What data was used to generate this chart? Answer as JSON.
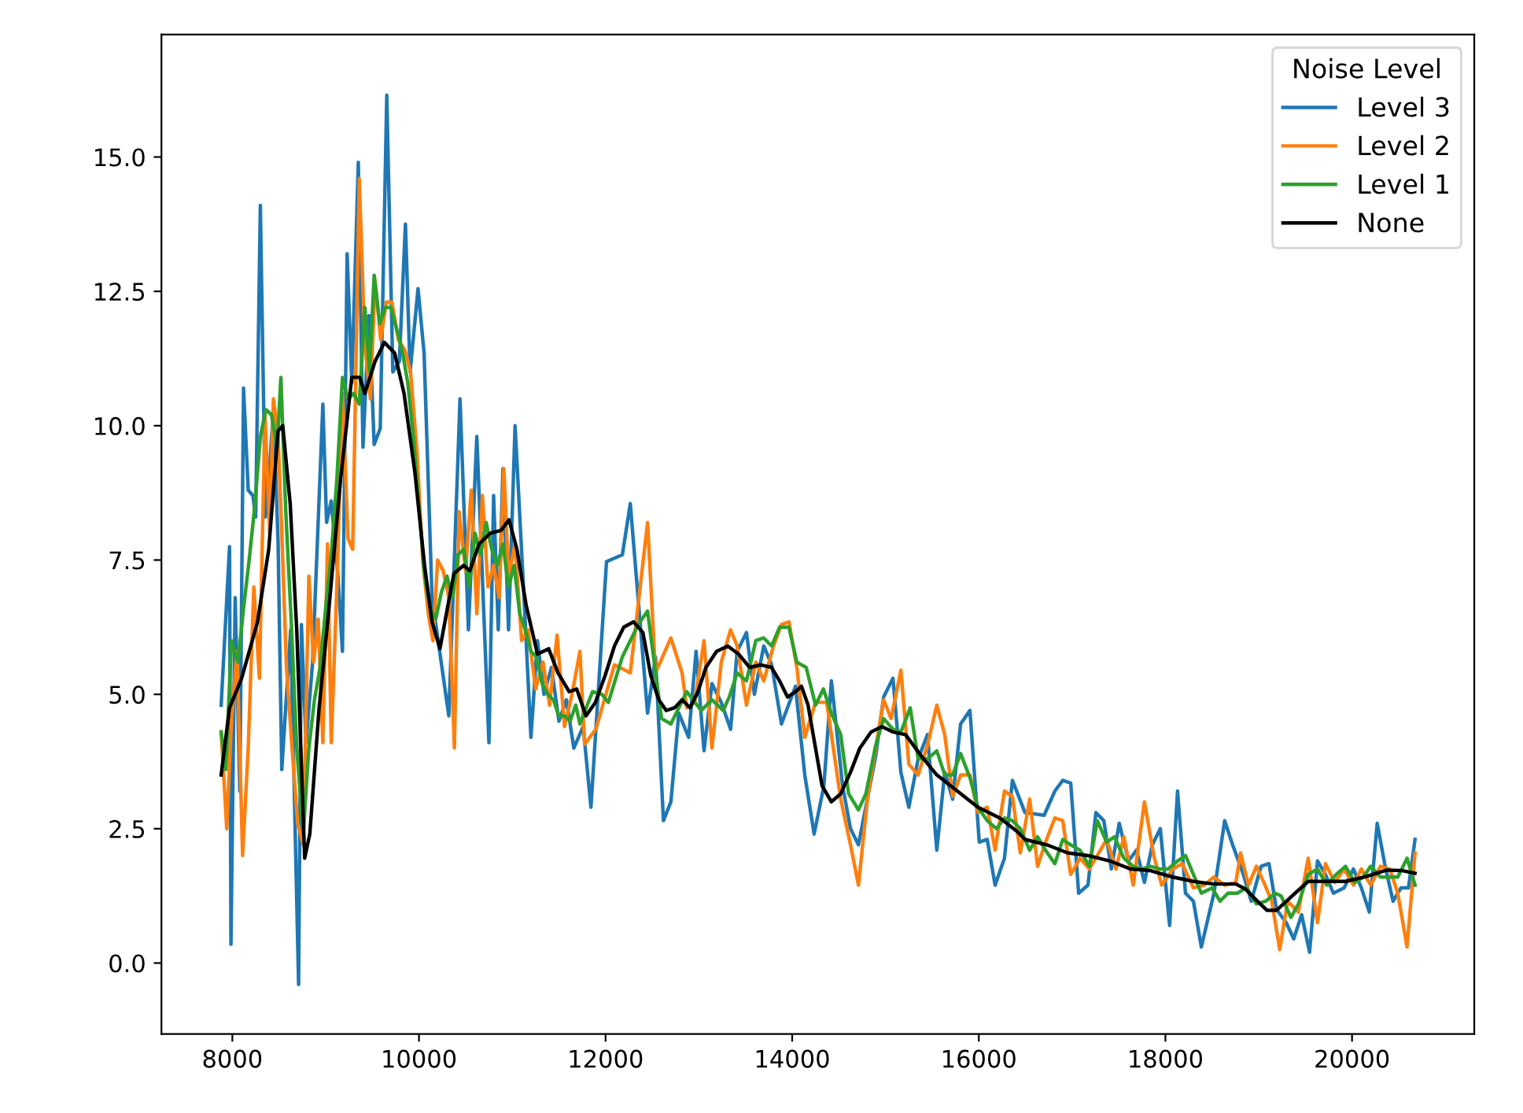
{
  "chart_data": {
    "type": "line",
    "legend_title": "Noise Level",
    "legend": "top right",
    "grid": false,
    "marker": "none",
    "line_style": "solid",
    "xlim": [
      7240,
      21310
    ],
    "ylim": [
      -1.32,
      17.28
    ],
    "xticks": [
      8000,
      10000,
      12000,
      14000,
      16000,
      18000,
      20000
    ],
    "yticks": [
      {
        "value": 0,
        "label": "0.0"
      },
      {
        "value": 2.5,
        "label": "2.5"
      },
      {
        "value": 5,
        "label": "5.0"
      },
      {
        "value": 7.5,
        "label": "7.5"
      },
      {
        "value": 10,
        "label": "10.0"
      },
      {
        "value": 12.5,
        "label": "12.5"
      },
      {
        "value": 15,
        "label": "15.0"
      }
    ],
    "series": [
      {
        "name": "Level 3",
        "color": "#1f77b4",
        "x": [
          7880,
          7970,
          7985,
          8030,
          8080,
          8120,
          8170,
          8220,
          8250,
          8300,
          8355,
          8400,
          8440,
          8490,
          8530,
          8625,
          8710,
          8740,
          8790,
          8860,
          8970,
          9010,
          9060,
          9130,
          9180,
          9230,
          9280,
          9350,
          9400,
          9465,
          9520,
          9585,
          9655,
          9720,
          9790,
          9855,
          9905,
          9990,
          10055,
          10140,
          10320,
          10440,
          10530,
          10620,
          10750,
          10800,
          10850,
          10900,
          10960,
          11030,
          11120,
          11200,
          11270,
          11340,
          11420,
          11500,
          11580,
          11660,
          11760,
          11843,
          12010,
          12180,
          12265,
          12450,
          12535,
          12620,
          12700,
          12785,
          12890,
          12970,
          13055,
          13140,
          13240,
          13340,
          13410,
          13510,
          13595,
          13695,
          13780,
          13885,
          14035,
          14135,
          14235,
          14340,
          14420,
          14540,
          14625,
          14710,
          14895,
          14980,
          15080,
          15165,
          15250,
          15350,
          15450,
          15550,
          15635,
          15720,
          15805,
          15905,
          16005,
          16090,
          16175,
          16275,
          16360,
          16495,
          16700,
          16815,
          16900,
          16985,
          17070,
          17170,
          17255,
          17340,
          17420,
          17505,
          17605,
          17690,
          17775,
          17860,
          17945,
          18045,
          18130,
          18215,
          18300,
          18385,
          18520,
          18635,
          18720,
          18835,
          18920,
          19025,
          19110,
          19190,
          19295,
          19375,
          19460,
          19545,
          19630,
          19715,
          19800,
          19915,
          20015,
          20100,
          20185,
          20270,
          20355,
          20440,
          20525,
          20605,
          20675
        ],
        "values": [
          4.8,
          7.75,
          0.35,
          6.8,
          3.2,
          10.7,
          8.8,
          8.7,
          8.3,
          14.1,
          8.3,
          9.25,
          10.3,
          7.85,
          3.6,
          6.2,
          -0.4,
          6.3,
          4.1,
          5.6,
          10.4,
          8.2,
          8.6,
          7.25,
          5.8,
          13.2,
          10.8,
          14.9,
          9.6,
          12.05,
          9.65,
          9.95,
          16.15,
          11.0,
          11.2,
          13.75,
          11.0,
          12.55,
          11.35,
          6.8,
          4.6,
          10.5,
          6.2,
          9.8,
          4.1,
          8.7,
          6.2,
          9.2,
          6.2,
          10.0,
          7.0,
          4.2,
          6.0,
          5.0,
          5.5,
          4.5,
          4.9,
          4.0,
          4.4,
          2.9,
          7.47,
          7.6,
          8.55,
          4.65,
          5.7,
          2.65,
          3.0,
          4.65,
          4.2,
          5.8,
          3.95,
          5.2,
          4.85,
          4.35,
          5.8,
          6.15,
          5.0,
          5.9,
          5.55,
          4.45,
          5.15,
          3.5,
          2.4,
          3.3,
          5.25,
          3.3,
          2.5,
          2.2,
          3.85,
          4.95,
          5.3,
          3.55,
          2.9,
          3.8,
          4.25,
          2.1,
          3.55,
          3.05,
          4.45,
          4.7,
          2.25,
          2.3,
          1.45,
          1.95,
          3.4,
          2.8,
          2.75,
          3.2,
          3.4,
          3.35,
          1.3,
          1.45,
          2.8,
          2.65,
          1.75,
          2.6,
          1.9,
          2.1,
          1.5,
          2.2,
          2.5,
          0.7,
          3.2,
          1.3,
          1.15,
          0.3,
          1.3,
          2.65,
          2.2,
          1.65,
          1.15,
          1.8,
          1.85,
          1.0,
          0.75,
          0.45,
          0.9,
          0.2,
          1.9,
          1.65,
          1.3,
          1.4,
          1.75,
          1.4,
          0.95,
          2.6,
          1.8,
          1.15,
          1.4,
          1.4,
          2.3
        ]
      },
      {
        "name": "Level 2",
        "color": "#ff7f0e",
        "x": [
          7880,
          7940,
          7990,
          8050,
          8110,
          8170,
          8230,
          8290,
          8350,
          8400,
          8440,
          8490,
          8530,
          8580,
          8640,
          8700,
          8760,
          8820,
          8870,
          8920,
          8970,
          9020,
          9060,
          9120,
          9180,
          9240,
          9290,
          9360,
          9420,
          9480,
          9530,
          9590,
          9650,
          9710,
          9780,
          9850,
          9910,
          9980,
          10040,
          10100,
          10150,
          10200,
          10260,
          10320,
          10380,
          10430,
          10500,
          10560,
          10620,
          10680,
          10740,
          10800,
          10860,
          10910,
          10960,
          11030,
          11100,
          11170,
          11250,
          11330,
          11400,
          11480,
          11560,
          11640,
          11725,
          11775,
          11895,
          12095,
          12265,
          12450,
          12535,
          12700,
          12820,
          12870,
          12955,
          13055,
          13140,
          13240,
          13340,
          13410,
          13510,
          13610,
          13695,
          13800,
          13885,
          13965,
          14050,
          14135,
          14250,
          14370,
          14520,
          14625,
          14710,
          14810,
          14980,
          15060,
          15165,
          15250,
          15350,
          15450,
          15550,
          15635,
          15720,
          15805,
          15905,
          15990,
          16090,
          16175,
          16275,
          16360,
          16445,
          16545,
          16630,
          16715,
          16815,
          16900,
          16985,
          17085,
          17185,
          17270,
          17370,
          17470,
          17555,
          17655,
          17775,
          17875,
          17960,
          18080,
          18180,
          18300,
          18415,
          18520,
          18635,
          18755,
          18805,
          18890,
          18975,
          19055,
          19140,
          19225,
          19310,
          19425,
          19530,
          19630,
          19715,
          19815,
          19915,
          20015,
          20100,
          20200,
          20305,
          20405,
          20490,
          20590,
          20675
        ],
        "values": [
          4.3,
          2.5,
          4.5,
          5.8,
          2.0,
          4.0,
          7.0,
          5.3,
          10.2,
          8.0,
          10.5,
          9.8,
          8.0,
          5.5,
          4.0,
          2.6,
          2.2,
          7.2,
          5.6,
          6.4,
          4.1,
          7.8,
          4.1,
          7.0,
          10.6,
          7.9,
          7.7,
          14.6,
          11.5,
          10.5,
          12.7,
          11.6,
          12.3,
          12.3,
          11.6,
          11.4,
          11.0,
          9.5,
          7.5,
          6.5,
          6.0,
          7.5,
          7.3,
          6.8,
          4.0,
          8.4,
          7.3,
          8.8,
          6.5,
          8.7,
          7.0,
          7.4,
          6.8,
          9.2,
          7.2,
          7.8,
          6.0,
          6.2,
          5.1,
          5.6,
          4.8,
          6.1,
          4.4,
          5.0,
          5.8,
          4.07,
          4.35,
          5.55,
          5.4,
          8.2,
          5.4,
          6.05,
          5.4,
          4.75,
          4.85,
          6.0,
          4.0,
          5.6,
          6.2,
          5.9,
          4.8,
          5.6,
          5.25,
          5.9,
          6.3,
          6.35,
          5.5,
          4.2,
          4.85,
          4.85,
          3.05,
          2.2,
          1.45,
          3.1,
          4.9,
          4.55,
          5.45,
          3.7,
          3.5,
          4.05,
          4.8,
          4.25,
          3.1,
          3.5,
          3.5,
          2.8,
          2.9,
          2.1,
          3.2,
          3.1,
          2.05,
          3.05,
          1.8,
          2.25,
          2.7,
          2.65,
          1.65,
          1.95,
          1.75,
          2.0,
          2.3,
          1.75,
          2.35,
          1.45,
          3.0,
          2.0,
          1.45,
          1.75,
          1.85,
          1.4,
          1.45,
          1.6,
          1.45,
          1.5,
          2.05,
          1.45,
          1.8,
          1.5,
          1.15,
          0.25,
          1.15,
          0.95,
          1.95,
          0.75,
          1.85,
          1.5,
          1.75,
          1.45,
          1.75,
          1.45,
          1.8,
          1.75,
          1.3,
          0.3,
          2.05
        ]
      },
      {
        "name": "Level 1",
        "color": "#2ca02c",
        "x": [
          7880,
          7930,
          7990,
          8060,
          8120,
          8180,
          8240,
          8300,
          8360,
          8420,
          8480,
          8520,
          8570,
          8630,
          8690,
          8760,
          8820,
          8880,
          8940,
          9000,
          9060,
          9120,
          9180,
          9240,
          9300,
          9360,
          9420,
          9470,
          9520,
          9580,
          9640,
          9700,
          9760,
          9820,
          9880,
          9940,
          10000,
          10060,
          10120,
          10180,
          10240,
          10300,
          10360,
          10420,
          10480,
          10540,
          10600,
          10660,
          10720,
          10780,
          10840,
          10900,
          10960,
          11020,
          11080,
          11140,
          11200,
          11260,
          11320,
          11380,
          11440,
          11500,
          11560,
          11620,
          11680,
          11725,
          11860,
          11960,
          12030,
          12180,
          12350,
          12450,
          12600,
          12700,
          12870,
          13025,
          13140,
          13260,
          13325,
          13410,
          13510,
          13610,
          13695,
          13780,
          13865,
          13965,
          14050,
          14150,
          14250,
          14335,
          14420,
          14520,
          14605,
          14710,
          14790,
          14895,
          14980,
          15080,
          15165,
          15265,
          15350,
          15450,
          15550,
          15635,
          15720,
          15805,
          15905,
          15990,
          16090,
          16190,
          16275,
          16360,
          16445,
          16545,
          16630,
          16715,
          16815,
          16900,
          16985,
          17085,
          17185,
          17270,
          17370,
          17455,
          17555,
          17655,
          17740,
          17840,
          17945,
          18030,
          18130,
          18215,
          18300,
          18385,
          18500,
          18585,
          18670,
          18770,
          18870,
          18975,
          19075,
          19175,
          19240,
          19345,
          19425,
          19530,
          19630,
          19730,
          19830,
          19930,
          20030,
          20120,
          20200,
          20305,
          20405,
          20490,
          20590,
          20675
        ],
        "values": [
          4.3,
          3.6,
          6.0,
          5.6,
          6.6,
          7.5,
          8.5,
          9.8,
          10.3,
          10.2,
          9.6,
          10.9,
          8.5,
          6.4,
          4.0,
          2.4,
          4.0,
          4.9,
          5.5,
          6.6,
          7.6,
          9.0,
          10.9,
          10.5,
          10.6,
          10.4,
          12.2,
          11.0,
          12.8,
          11.9,
          12.2,
          12.2,
          11.8,
          11.4,
          10.8,
          9.8,
          8.5,
          7.2,
          6.6,
          6.4,
          6.9,
          7.2,
          6.8,
          7.6,
          7.7,
          7.0,
          8.0,
          7.6,
          8.2,
          7.7,
          7.4,
          7.8,
          7.0,
          7.4,
          6.5,
          6.2,
          5.8,
          5.7,
          5.2,
          5.0,
          4.9,
          4.6,
          4.6,
          4.5,
          4.8,
          4.45,
          5.05,
          5.0,
          4.85,
          5.7,
          6.3,
          6.55,
          4.55,
          4.45,
          5.05,
          4.7,
          4.9,
          4.7,
          4.95,
          5.4,
          5.25,
          6.0,
          6.05,
          5.9,
          6.25,
          6.25,
          5.6,
          5.5,
          4.8,
          5.1,
          4.65,
          4.25,
          3.15,
          2.85,
          3.15,
          4.05,
          4.55,
          4.35,
          4.3,
          4.75,
          3.8,
          3.8,
          3.95,
          3.5,
          3.5,
          3.9,
          3.45,
          2.9,
          2.65,
          2.5,
          2.7,
          2.65,
          2.5,
          2.1,
          2.35,
          2.1,
          1.85,
          2.3,
          2.2,
          2.1,
          1.8,
          2.65,
          2.25,
          2.35,
          1.95,
          1.8,
          1.75,
          1.8,
          1.75,
          1.75,
          1.9,
          2.0,
          1.65,
          1.3,
          1.4,
          1.15,
          1.3,
          1.3,
          1.4,
          1.1,
          1.15,
          1.3,
          1.25,
          0.85,
          1.1,
          1.65,
          1.75,
          1.45,
          1.65,
          1.8,
          1.5,
          1.6,
          1.8,
          1.6,
          1.6,
          1.6,
          1.95,
          1.45
        ]
      },
      {
        "name": "None",
        "color": "#000000",
        "x": [
          7880,
          7970,
          8100,
          8270,
          8390,
          8490,
          8540,
          8620,
          8690,
          8775,
          8830,
          8930,
          9030,
          9160,
          9280,
          9365,
          9420,
          9530,
          9630,
          9740,
          9840,
          9955,
          10060,
          10140,
          10225,
          10310,
          10375,
          10480,
          10545,
          10645,
          10765,
          10880,
          10965,
          11050,
          11150,
          11270,
          11390,
          11490,
          11610,
          11690,
          11790,
          11890,
          11995,
          12095,
          12195,
          12300,
          12400,
          12485,
          12570,
          12650,
          12740,
          12820,
          12905,
          12990,
          13075,
          13190,
          13310,
          13425,
          13545,
          13660,
          13780,
          13865,
          13950,
          14035,
          14100,
          14170,
          14235,
          14320,
          14420,
          14520,
          14625,
          14725,
          14845,
          14960,
          15080,
          15215,
          15385,
          15550,
          15770,
          15990,
          16225,
          16410,
          16495,
          16730,
          16950,
          17170,
          17405,
          17625,
          17840,
          18080,
          18300,
          18520,
          18755,
          18855,
          18975,
          19090,
          19190,
          19345,
          19530,
          19765,
          19930,
          20150,
          20370,
          20540,
          20675
        ],
        "values": [
          3.5,
          4.75,
          5.3,
          6.35,
          7.7,
          9.9,
          10.0,
          8.55,
          6.2,
          1.95,
          2.4,
          4.75,
          6.5,
          9.0,
          10.9,
          10.9,
          10.6,
          11.2,
          11.55,
          11.35,
          10.6,
          9.15,
          7.4,
          6.35,
          5.85,
          6.65,
          7.25,
          7.4,
          7.3,
          7.8,
          8.0,
          8.05,
          8.25,
          7.7,
          6.65,
          5.75,
          5.85,
          5.4,
          5.05,
          5.1,
          4.6,
          4.85,
          5.35,
          5.9,
          6.25,
          6.35,
          6.15,
          5.35,
          4.9,
          4.7,
          4.75,
          4.9,
          4.75,
          5.05,
          5.5,
          5.8,
          5.9,
          5.75,
          5.5,
          5.55,
          5.5,
          5.25,
          4.95,
          5.05,
          5.15,
          4.8,
          4.15,
          3.3,
          3.0,
          3.15,
          3.55,
          4.0,
          4.3,
          4.4,
          4.3,
          4.25,
          3.85,
          3.5,
          3.2,
          2.9,
          2.7,
          2.45,
          2.3,
          2.2,
          2.05,
          2.0,
          1.9,
          1.75,
          1.72,
          1.6,
          1.52,
          1.47,
          1.47,
          1.38,
          1.17,
          0.98,
          0.98,
          1.23,
          1.52,
          1.52,
          1.52,
          1.61,
          1.73,
          1.72,
          1.67
        ]
      }
    ]
  }
}
